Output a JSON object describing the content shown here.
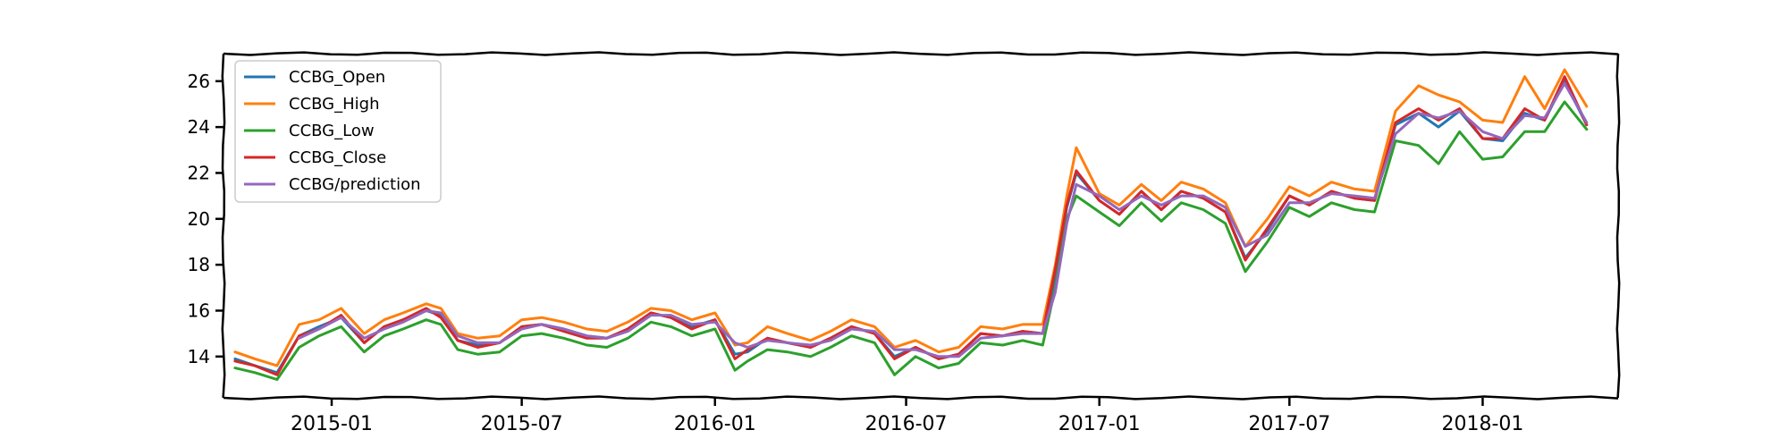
{
  "chart_data": {
    "type": "line",
    "title": "",
    "xlabel": "",
    "ylabel": "",
    "x_ticks": [
      "2015-01",
      "2015-07",
      "2016-01",
      "2016-07",
      "2017-01",
      "2017-07",
      "2018-01"
    ],
    "y_ticks": [
      14,
      16,
      18,
      20,
      22,
      24,
      26
    ],
    "xlim": [
      "2014-09-20",
      "2018-05-10"
    ],
    "ylim": [
      12.2,
      27.2
    ],
    "grid": false,
    "legend_position": "top-left",
    "x": [
      "2014-10-01",
      "2014-10-20",
      "2014-11-10",
      "2014-12-01",
      "2014-12-20",
      "2015-01-10",
      "2015-02-01",
      "2015-02-20",
      "2015-03-10",
      "2015-04-01",
      "2015-04-15",
      "2015-05-01",
      "2015-05-20",
      "2015-06-10",
      "2015-07-01",
      "2015-07-20",
      "2015-08-10",
      "2015-09-01",
      "2015-09-20",
      "2015-10-10",
      "2015-11-01",
      "2015-11-20",
      "2015-12-10",
      "2016-01-01",
      "2016-01-20",
      "2016-02-01",
      "2016-02-20",
      "2016-03-10",
      "2016-04-01",
      "2016-04-20",
      "2016-05-10",
      "2016-06-01",
      "2016-06-20",
      "2016-07-10",
      "2016-08-01",
      "2016-08-20",
      "2016-09-10",
      "2016-10-01",
      "2016-10-20",
      "2016-11-08",
      "2016-11-20",
      "2016-12-01",
      "2016-12-10",
      "2017-01-01",
      "2017-01-20",
      "2017-02-10",
      "2017-03-01",
      "2017-03-20",
      "2017-04-10",
      "2017-05-01",
      "2017-05-20",
      "2017-06-10",
      "2017-07-01",
      "2017-07-20",
      "2017-08-10",
      "2017-09-01",
      "2017-09-20",
      "2017-10-10",
      "2017-11-01",
      "2017-11-20",
      "2017-12-10",
      "2018-01-01",
      "2018-01-20",
      "2018-02-10",
      "2018-03-01",
      "2018-03-20",
      "2018-04-10"
    ],
    "series": [
      {
        "name": "CCBG_Open",
        "color": "#1f77b4",
        "values": [
          13.9,
          13.6,
          13.3,
          14.9,
          15.3,
          15.7,
          14.6,
          15.3,
          15.6,
          16.0,
          15.8,
          14.7,
          14.5,
          14.6,
          15.3,
          15.4,
          15.2,
          14.9,
          14.8,
          15.2,
          15.9,
          15.7,
          15.3,
          15.6,
          14.1,
          14.2,
          14.8,
          14.6,
          14.4,
          14.8,
          15.3,
          15.0,
          14.0,
          14.4,
          13.9,
          14.1,
          15.0,
          14.9,
          15.1,
          15.0,
          17.5,
          20.5,
          22.0,
          20.8,
          20.2,
          21.2,
          20.4,
          21.2,
          20.9,
          20.3,
          18.3,
          19.5,
          21.0,
          20.6,
          21.2,
          20.9,
          20.8,
          24.1,
          24.6,
          24.0,
          24.7,
          23.5,
          23.4,
          24.6,
          24.3,
          26.0,
          24.1
        ]
      },
      {
        "name": "CCBG_High",
        "color": "#ff7f0e",
        "values": [
          14.2,
          13.9,
          13.6,
          15.4,
          15.6,
          16.1,
          15.0,
          15.6,
          15.9,
          16.3,
          16.1,
          15.0,
          14.8,
          14.9,
          15.6,
          15.7,
          15.5,
          15.2,
          15.1,
          15.5,
          16.1,
          16.0,
          15.6,
          15.9,
          14.5,
          14.6,
          15.3,
          15.0,
          14.7,
          15.1,
          15.6,
          15.3,
          14.4,
          14.7,
          14.2,
          14.4,
          15.3,
          15.2,
          15.4,
          15.4,
          18.0,
          21.0,
          23.1,
          21.1,
          20.6,
          21.5,
          20.8,
          21.6,
          21.3,
          20.7,
          18.8,
          20.0,
          21.4,
          21.0,
          21.6,
          21.3,
          21.2,
          24.7,
          25.8,
          25.4,
          25.1,
          24.3,
          24.2,
          26.2,
          24.8,
          26.5,
          24.9
        ]
      },
      {
        "name": "CCBG_Low",
        "color": "#2ca02c",
        "values": [
          13.5,
          13.3,
          13.0,
          14.4,
          14.9,
          15.3,
          14.2,
          14.9,
          15.2,
          15.6,
          15.4,
          14.3,
          14.1,
          14.2,
          14.9,
          15.0,
          14.8,
          14.5,
          14.4,
          14.8,
          15.5,
          15.3,
          14.9,
          15.2,
          13.4,
          13.8,
          14.3,
          14.2,
          14.0,
          14.4,
          14.9,
          14.6,
          13.2,
          14.0,
          13.5,
          13.7,
          14.6,
          14.5,
          14.7,
          14.5,
          17.0,
          20.0,
          21.0,
          20.3,
          19.7,
          20.7,
          19.9,
          20.7,
          20.4,
          19.8,
          17.7,
          19.0,
          20.5,
          20.1,
          20.7,
          20.4,
          20.3,
          23.4,
          23.2,
          22.4,
          23.8,
          22.6,
          22.7,
          23.8,
          23.8,
          25.1,
          23.9
        ]
      },
      {
        "name": "CCBG_Close",
        "color": "#d62728",
        "values": [
          13.8,
          13.6,
          13.2,
          14.9,
          15.2,
          15.8,
          14.6,
          15.3,
          15.6,
          16.1,
          15.7,
          14.7,
          14.4,
          14.6,
          15.3,
          15.4,
          15.1,
          14.8,
          14.8,
          15.2,
          15.9,
          15.7,
          15.2,
          15.6,
          13.9,
          14.3,
          14.8,
          14.6,
          14.4,
          14.8,
          15.3,
          15.0,
          13.9,
          14.4,
          13.9,
          14.1,
          15.0,
          14.9,
          15.1,
          15.0,
          17.8,
          20.6,
          22.1,
          20.8,
          20.2,
          21.2,
          20.4,
          21.2,
          20.9,
          20.3,
          18.2,
          19.6,
          21.0,
          20.6,
          21.2,
          20.9,
          20.8,
          24.2,
          24.8,
          24.3,
          24.8,
          23.5,
          23.5,
          24.8,
          24.3,
          26.2,
          24.1
        ]
      },
      {
        "name": "CCBG/prediction",
        "color": "#9467bd",
        "values": [
          null,
          null,
          null,
          14.8,
          15.2,
          15.7,
          14.8,
          15.2,
          15.5,
          16.0,
          15.9,
          14.9,
          14.6,
          14.6,
          15.2,
          15.4,
          15.2,
          14.9,
          14.8,
          15.1,
          15.8,
          15.8,
          15.4,
          15.5,
          14.6,
          14.4,
          14.7,
          14.6,
          14.5,
          14.7,
          15.2,
          15.1,
          14.3,
          14.3,
          14.0,
          14.0,
          14.8,
          14.9,
          15.0,
          15.0,
          16.8,
          19.8,
          21.5,
          21.0,
          20.4,
          21.0,
          20.6,
          21.0,
          21.0,
          20.5,
          18.8,
          19.3,
          20.7,
          20.7,
          21.1,
          21.0,
          20.9,
          23.7,
          24.6,
          24.4,
          24.7,
          23.8,
          23.5,
          24.5,
          24.4,
          25.9,
          24.2
        ]
      }
    ]
  }
}
